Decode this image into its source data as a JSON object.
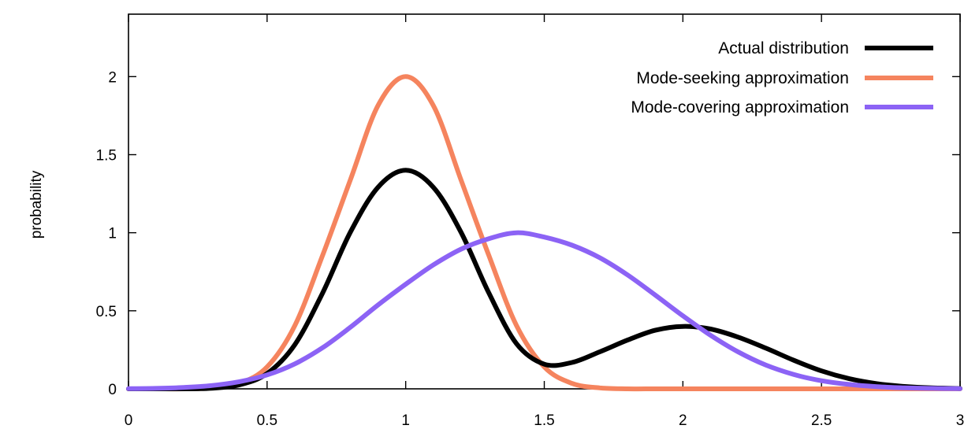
{
  "chart_data": {
    "type": "line",
    "title": "",
    "xlabel": "",
    "ylabel": "probability",
    "xlim": [
      0,
      3
    ],
    "ylim": [
      0,
      2.4
    ],
    "x_ticks": [
      0,
      0.5,
      1,
      1.5,
      2,
      2.5,
      3
    ],
    "x_tick_labels": [
      "0",
      "0.5",
      "1",
      "1.5",
      "2",
      "2.5",
      "3"
    ],
    "y_ticks": [
      0,
      0.5,
      1,
      1.5,
      2
    ],
    "y_tick_labels": [
      "0",
      "0.5",
      "1",
      "1.5",
      "2"
    ],
    "grid": false,
    "legend_position": "top-right",
    "x": [
      0,
      0.1,
      0.2,
      0.3,
      0.4,
      0.5,
      0.6,
      0.7,
      0.8,
      0.9,
      1.0,
      1.1,
      1.2,
      1.3,
      1.4,
      1.5,
      1.6,
      1.7,
      1.8,
      1.9,
      2.0,
      2.1,
      2.2,
      2.3,
      2.4,
      2.5,
      2.6,
      2.7,
      2.8,
      2.9,
      3.0
    ],
    "series": [
      {
        "name": "Actual distribution",
        "color": "#000000",
        "values": [
          0.0,
          0.0,
          0.0,
          0.004,
          0.025,
          0.098,
          0.283,
          0.613,
          1.002,
          1.291,
          1.4,
          1.291,
          1.002,
          0.614,
          0.289,
          0.158,
          0.169,
          0.237,
          0.312,
          0.375,
          0.4,
          0.383,
          0.331,
          0.26,
          0.183,
          0.115,
          0.065,
          0.033,
          0.015,
          0.006,
          0.002
        ]
      },
      {
        "name": "Mode-seeking approximation",
        "color": "#f5845e",
        "values": [
          0.0,
          0.0,
          0.0,
          0.006,
          0.035,
          0.14,
          0.405,
          0.854,
          1.336,
          1.814,
          2.0,
          1.814,
          1.336,
          0.854,
          0.405,
          0.14,
          0.035,
          0.006,
          0.0,
          0.0,
          0.0,
          0.0,
          0.0,
          0.0,
          0.0,
          0.0,
          0.0,
          0.0,
          0.0,
          0.0,
          0.0
        ]
      },
      {
        "name": "Mode-covering approximation",
        "color": "#8c63f5",
        "values": [
          0.001,
          0.003,
          0.009,
          0.021,
          0.046,
          0.089,
          0.16,
          0.263,
          0.394,
          0.537,
          0.67,
          0.794,
          0.895,
          0.962,
          1.0,
          0.972,
          0.92,
          0.84,
          0.73,
          0.601,
          0.468,
          0.343,
          0.236,
          0.152,
          0.092,
          0.052,
          0.028,
          0.014,
          0.006,
          0.003,
          0.001
        ]
      }
    ]
  }
}
